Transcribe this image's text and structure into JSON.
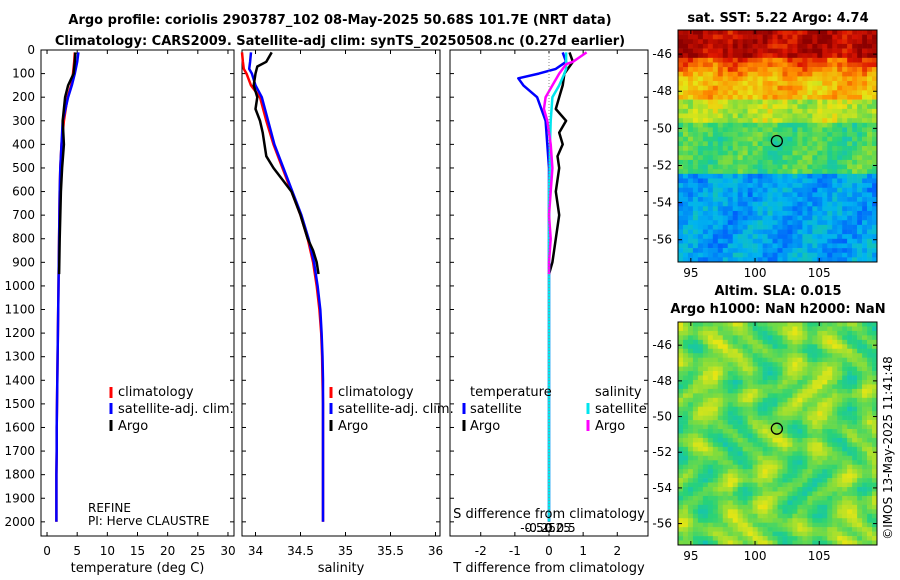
{
  "titles": {
    "line1": "Argo profile: coriolis 2903787_102 08-May-2025 50.68S 101.7E (NRT data)",
    "line2": "Climatology: CARS2009. Satellite-adj clim: synTS_20250508.nc (0.27d earlier)",
    "sst": "sat. SST: 5.22 Argo: 4.74",
    "altim1": "Altim. SLA: 0.015",
    "altim2": "Argo h1000: NaN h2000: NaN"
  },
  "watermark": "©IMOS 13-May-2025 11:41:48",
  "float_info": {
    "program": "REFINE",
    "pi": "PI: Herve CLAUSTRE"
  },
  "colors": {
    "climatology": "#ff0000",
    "satellite_adj": "#0000ff",
    "argo": "#000000",
    "sat_salinity": "#00e5ee",
    "argo_salinity": "#ff00ff"
  },
  "depth_axis": {
    "ticks": [
      0,
      100,
      200,
      300,
      400,
      500,
      600,
      700,
      800,
      900,
      1000,
      1100,
      1200,
      1300,
      1400,
      1500,
      1600,
      1700,
      1800,
      1900,
      2000
    ],
    "range": [
      0,
      2060
    ]
  },
  "chart_data": [
    {
      "type": "line",
      "name": "temperature",
      "xlabel": "temperature (deg C)",
      "xlim": [
        -1,
        31
      ],
      "xticks": [
        0,
        5,
        10,
        15,
        20,
        25,
        30
      ],
      "legend": [
        "climatology",
        "satellite-adj. clim.",
        "Argo"
      ],
      "series": [
        {
          "name": "climatology",
          "color": "#ff0000",
          "x": [
            4.6,
            4.5,
            4.3,
            4.0,
            3.4,
            2.8,
            2.4,
            2.2,
            2.1,
            2.05,
            2.0,
            1.95,
            1.9,
            1.85,
            1.8,
            1.75,
            1.7,
            1.65,
            1.6,
            1.6,
            1.55,
            1.55
          ],
          "y": [
            10,
            50,
            100,
            150,
            200,
            300,
            400,
            500,
            600,
            700,
            800,
            900,
            1000,
            1100,
            1200,
            1300,
            1400,
            1500,
            1600,
            1700,
            1800,
            2000
          ]
        },
        {
          "name": "satellite-adj. clim.",
          "color": "#0000ff",
          "x": [
            5.2,
            5.0,
            4.6,
            4.1,
            3.5,
            2.6,
            2.4,
            2.2,
            2.1,
            2.05,
            2.0,
            1.95,
            1.9,
            1.85,
            1.8,
            1.75,
            1.7,
            1.65,
            1.6,
            1.6,
            1.55,
            1.55
          ],
          "y": [
            10,
            50,
            100,
            150,
            200,
            300,
            400,
            500,
            600,
            700,
            800,
            900,
            1000,
            1100,
            1200,
            1300,
            1400,
            1500,
            1600,
            1700,
            1800,
            2000
          ]
        },
        {
          "name": "Argo",
          "color": "#000000",
          "x": [
            4.7,
            4.6,
            4.4,
            3.5,
            3.0,
            2.6,
            2.8,
            2.5,
            2.3,
            2.2,
            2.1,
            2.0
          ],
          "y": [
            10,
            50,
            100,
            150,
            200,
            300,
            400,
            500,
            600,
            700,
            800,
            950
          ]
        }
      ]
    },
    {
      "type": "line",
      "name": "salinity",
      "xlabel": "salinity",
      "xlim": [
        33.85,
        36.05
      ],
      "xticks": [
        34,
        34.5,
        35,
        35.5,
        36
      ],
      "legend": [
        "climatology",
        "satellite-adj. clim.",
        "Argo"
      ],
      "series": [
        {
          "name": "climatology",
          "color": "#ff0000",
          "x": [
            33.85,
            33.86,
            33.87,
            33.9,
            33.95,
            34.05,
            34.12,
            34.2,
            34.3,
            34.4,
            34.5,
            34.58,
            34.64,
            34.68,
            34.71,
            34.73,
            34.74,
            34.745,
            34.75,
            34.75,
            34.75,
            34.75,
            34.75
          ],
          "y": [
            10,
            50,
            80,
            100,
            150,
            200,
            300,
            400,
            500,
            600,
            700,
            800,
            900,
            1000,
            1100,
            1200,
            1300,
            1400,
            1500,
            1600,
            1700,
            1800,
            2000
          ]
        },
        {
          "name": "satellite-adj. clim.",
          "color": "#0000ff",
          "x": [
            33.95,
            33.94,
            33.93,
            33.96,
            34.0,
            34.07,
            34.14,
            34.21,
            34.31,
            34.41,
            34.51,
            34.59,
            34.65,
            34.69,
            34.72,
            34.735,
            34.745,
            34.75,
            34.75,
            34.75,
            34.75,
            34.75,
            34.75
          ],
          "y": [
            10,
            50,
            80,
            100,
            150,
            200,
            300,
            400,
            500,
            600,
            700,
            800,
            900,
            1000,
            1100,
            1200,
            1300,
            1400,
            1500,
            1600,
            1700,
            1800,
            2000
          ]
        },
        {
          "name": "Argo",
          "color": "#000000",
          "x": [
            34.18,
            34.12,
            34.02,
            34.0,
            33.98,
            34.02,
            34.0,
            34.05,
            34.08,
            34.1,
            34.12,
            34.2,
            34.3,
            34.4,
            34.5,
            34.58,
            34.64,
            34.68,
            34.7
          ],
          "y": [
            10,
            50,
            70,
            100,
            150,
            200,
            250,
            300,
            350,
            400,
            450,
            500,
            550,
            600,
            700,
            800,
            850,
            900,
            950
          ]
        }
      ]
    },
    {
      "type": "line",
      "name": "difference",
      "xlabel": "T difference from climatology",
      "xlabel2": "S difference from climatology",
      "xlim": [
        -2.9,
        2.9
      ],
      "xticks": [
        -2,
        -1,
        0,
        1,
        2
      ],
      "s_xticks": [
        -0.5,
        -0.25,
        0,
        0.25,
        0.5
      ],
      "legend": {
        "temperature_header": "temperature",
        "salinity_header": "salinity",
        "items": [
          "satellite",
          "Argo",
          "satellite",
          "Argo"
        ]
      },
      "series": [
        {
          "name": "temperature satellite",
          "color": "#0000ff",
          "x": [
            0.4,
            0.5,
            0.2,
            -0.3,
            -0.9,
            -0.75,
            -0.35,
            -0.1,
            -0.05,
            0.0,
            0.0,
            0.0,
            0.0,
            0.0,
            0.0,
            0.0
          ],
          "y": [
            10,
            50,
            80,
            100,
            120,
            150,
            200,
            300,
            400,
            500,
            600,
            800,
            1000,
            1200,
            1600,
            2000
          ]
        },
        {
          "name": "temperature Argo",
          "color": "#000000",
          "x": [
            0.6,
            0.7,
            0.6,
            0.45,
            0.4,
            0.3,
            0.2,
            0.5,
            0.3,
            0.4,
            0.25,
            0.3,
            0.2,
            0.3,
            0.2,
            0.15,
            0.1,
            0.0
          ],
          "y": [
            10,
            50,
            70,
            100,
            150,
            200,
            250,
            300,
            350,
            400,
            450,
            500,
            600,
            700,
            800,
            850,
            900,
            950
          ]
        },
        {
          "name": "salinity satellite",
          "color": "#00e5ee",
          "x": [
            0.5,
            0.5,
            0.5,
            0.45,
            0.3,
            0.1,
            0.05,
            0.03,
            0.02,
            0.0,
            0.0,
            0.0,
            0.0
          ],
          "y": [
            10,
            50,
            80,
            100,
            150,
            200,
            300,
            400,
            500,
            600,
            1000,
            1500,
            2000
          ]
        },
        {
          "name": "salinity Argo",
          "color": "#ff00ff",
          "x": [
            1.1,
            0.9,
            0.7,
            0.5,
            0.4,
            0.3,
            0.1,
            -0.1,
            -0.15,
            -0.05,
            0.0,
            0.05,
            0.1,
            0.05,
            0.0,
            0.05,
            0.0,
            0.0
          ],
          "y": [
            10,
            30,
            50,
            60,
            80,
            100,
            150,
            200,
            250,
            300,
            350,
            400,
            500,
            600,
            700,
            800,
            900,
            950
          ]
        }
      ]
    }
  ],
  "maps": {
    "sst": {
      "xticks": [
        95,
        105
      ],
      "xtick_mid": [
        100
      ],
      "yticks": [
        -46,
        -48,
        -50,
        -52,
        -54,
        -56
      ],
      "lon_range": [
        94,
        109.5
      ],
      "lat_range": [
        -57.2,
        -44.7
      ],
      "marker": {
        "lon": 101.7,
        "lat": -50.68
      }
    },
    "sla": {
      "xticks": [
        95,
        105
      ],
      "xtick_mid": [
        100
      ],
      "yticks": [
        -46,
        -48,
        -50,
        -52,
        -54,
        -56
      ],
      "lon_range": [
        94,
        109.5
      ],
      "lat_range": [
        -57.2,
        -44.7
      ],
      "marker": {
        "lon": 101.7,
        "lat": -50.68
      }
    }
  }
}
